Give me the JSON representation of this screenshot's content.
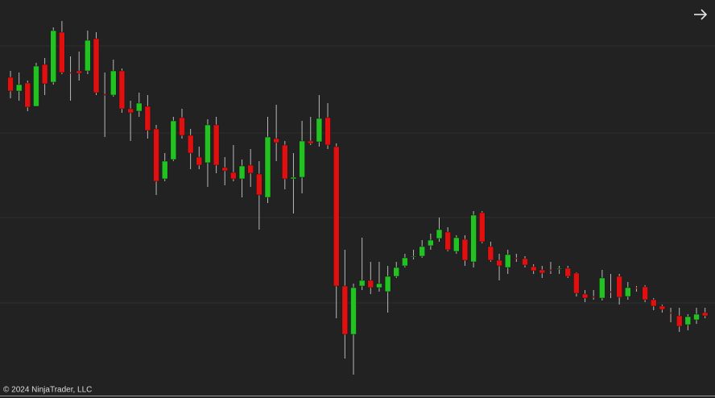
{
  "chart_data": {
    "type": "candlestick",
    "copyright": "© 2024 NinjaTrader, LLC",
    "up_color": "#22c222",
    "down_color": "#e01010",
    "grid": true,
    "ylim": [
      0,
      494
    ],
    "yticks": [
      118,
      224,
      329,
      437
    ],
    "open": [
      398,
      381,
      391,
      362,
      414,
      392,
      454,
      404,
      406,
      406,
      446,
      377,
      376,
      406,
      359,
      356,
      362,
      334,
      272,
      296,
      348,
      326,
      299,
      292,
      339,
      286,
      280,
      272,
      289,
      278,
      249,
      322,
      314,
      272,
      274,
      319,
      318,
      348,
      312,
      139,
      79,
      139,
      146,
      137,
      132,
      151,
      164,
      176,
      176,
      189,
      198,
      206,
      182,
      197,
      169,
      230,
      188,
      171,
      162,
      174,
      173,
      163,
      159,
      159,
      161,
      161,
      155,
      129,
      126,
      124,
      132,
      151,
      126,
      137,
      138,
      122,
      114,
      106,
      102,
      91,
      97,
      106
    ],
    "high": [
      406,
      404,
      394,
      416,
      422,
      460,
      468,
      424,
      430,
      456,
      454,
      404,
      420,
      409,
      369,
      379,
      376,
      339,
      304,
      349,
      359,
      334,
      312,
      346,
      349,
      299,
      314,
      296,
      309,
      294,
      349,
      364,
      319,
      304,
      344,
      349,
      376,
      366,
      316,
      184,
      142,
      199,
      169,
      169,
      164,
      169,
      179,
      184,
      196,
      204,
      224,
      212,
      202,
      202,
      232,
      232,
      194,
      179,
      184,
      179,
      176,
      166,
      164,
      169,
      164,
      164,
      156,
      134,
      134,
      159,
      154,
      154,
      144,
      139,
      140,
      124,
      116,
      112,
      112,
      104,
      112,
      112
    ],
    "low": [
      372,
      369,
      356,
      362,
      376,
      389,
      402,
      369,
      394,
      402,
      376,
      324,
      374,
      354,
      319,
      349,
      322,
      252,
      269,
      294,
      322,
      284,
      284,
      262,
      279,
      264,
      269,
      249,
      262,
      209,
      242,
      294,
      259,
      229,
      254,
      314,
      312,
      309,
      99,
      49,
      29,
      134,
      129,
      132,
      106,
      149,
      162,
      172,
      174,
      184,
      194,
      182,
      179,
      164,
      162,
      192,
      169,
      146,
      154,
      169,
      162,
      154,
      149,
      154,
      154,
      149,
      126,
      119,
      122,
      121,
      124,
      116,
      122,
      132,
      119,
      109,
      106,
      94,
      82,
      84,
      92,
      99
    ],
    "close": [
      381,
      389,
      361,
      412,
      390,
      456,
      404,
      403,
      403,
      444,
      379,
      376,
      406,
      359,
      354,
      366,
      332,
      269,
      294,
      344,
      326,
      304,
      289,
      339,
      289,
      282,
      272,
      288,
      279,
      252,
      324,
      317,
      272,
      274,
      319,
      316,
      347,
      314,
      139,
      79,
      137,
      146,
      137,
      142,
      151,
      162,
      174,
      176,
      188,
      196,
      209,
      184,
      199,
      171,
      227,
      194,
      171,
      164,
      178,
      173,
      165,
      158,
      155,
      158,
      161,
      151,
      130,
      124,
      125,
      149,
      131,
      125,
      137,
      136,
      122,
      114,
      110,
      105,
      89,
      101,
      104,
      102
    ]
  }
}
